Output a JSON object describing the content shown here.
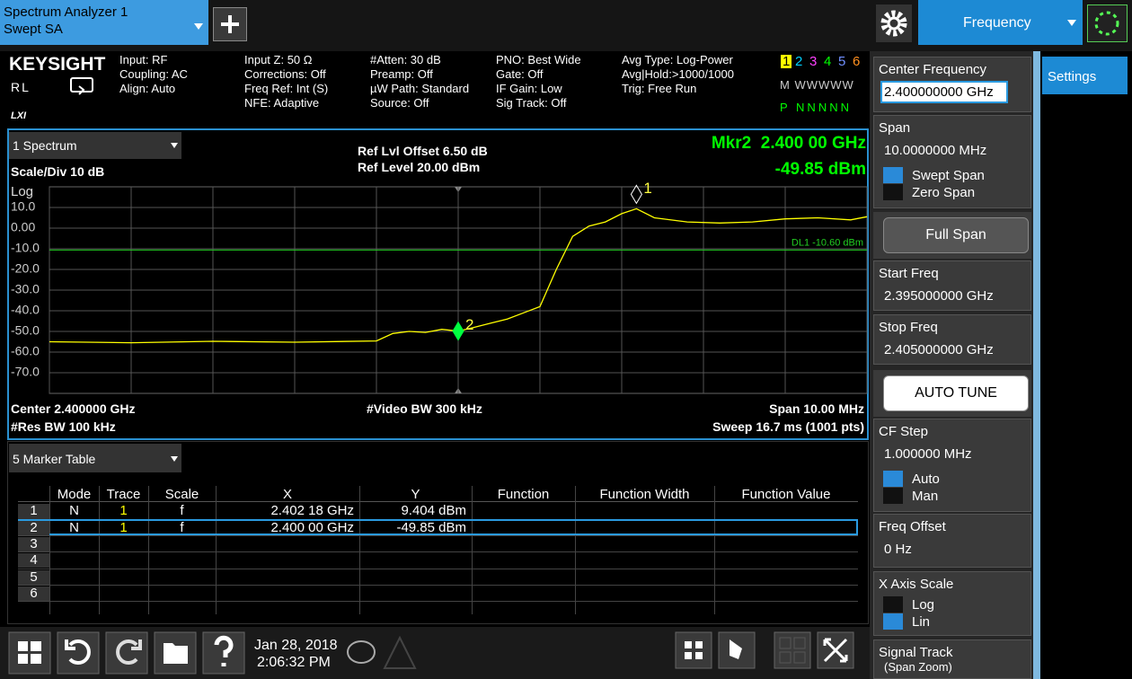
{
  "top_bar": {
    "app_title": "Spectrum Analyzer 1",
    "app_mode": "Swept SA",
    "active_menu": "Frequency"
  },
  "info_bar": {
    "brand": "KEYSIGHT",
    "rl": "RL",
    "lxi": "LXI",
    "columns": [
      [
        "Input: RF",
        "Coupling: AC",
        "Align: Auto"
      ],
      [
        "Input Z: 50 Ω",
        "Corrections: Off",
        "Freq Ref: Int (S)",
        "NFE: Adaptive"
      ],
      [
        "#Atten: 30 dB",
        "Preamp: Off",
        "µW Path: Standard",
        "Source: Off"
      ],
      [
        "PNO: Best Wide",
        "Gate: Off",
        "IF Gain: Low",
        "Sig Track: Off"
      ],
      [
        "Avg Type: Log-Power",
        "Avg|Hold:>1000/1000",
        "Trig: Free Run"
      ]
    ],
    "trace_numbers": [
      "1",
      "2",
      "3",
      "4",
      "5",
      "6"
    ],
    "trace_types": "M WWWWW",
    "trace_detectors": "P NNNNN"
  },
  "window": {
    "title": "1 Spectrum",
    "scale": "Scale/Div 10 dB",
    "log": "Log",
    "ref_offset": "Ref Lvl Offset 6.50 dB",
    "ref_level": "Ref Level 20.00 dBm",
    "marker_freq": "Mkr2  2.400 00 GHz",
    "marker_amp": "-49.85 dBm",
    "center": "Center 2.400000 GHz",
    "res_bw": "#Res BW 100 kHz",
    "video_bw": "#Video BW 300 kHz",
    "span": "Span 10.00 MHz",
    "sweep": "Sweep 16.7 ms (1001 pts)",
    "trace": {
      "type": "line",
      "color": "#ffff00",
      "x": [
        2.395,
        2.396,
        2.397,
        2.398,
        2.399,
        2.3992,
        2.3994,
        2.3996,
        2.3998,
        2.4,
        2.4002,
        2.4004,
        2.4006,
        2.4008,
        2.401,
        2.4012,
        2.4014,
        2.4016,
        2.4018,
        2.402,
        2.40218,
        2.4024,
        2.4028,
        2.4032,
        2.4036,
        2.404,
        2.4044,
        2.4048,
        2.405
      ],
      "values": [
        -55,
        -55.5,
        -54.8,
        -55.2,
        -54.6,
        -51,
        -50,
        -50.5,
        -49,
        -49.85,
        -48,
        -46,
        -44,
        -41,
        -38,
        -20,
        -4,
        1,
        3,
        7,
        9.404,
        5,
        3,
        2.5,
        3,
        4.5,
        5,
        4,
        5.5
      ],
      "xlim": [
        2.395,
        2.405
      ],
      "ylim": [
        -80,
        20
      ],
      "xticks": [
        2.395,
        2.396,
        2.397,
        2.398,
        2.399,
        2.4,
        2.401,
        2.402,
        2.403,
        2.404,
        2.405
      ],
      "yticks": [
        {
          "value": 10,
          "label": "10.0"
        },
        {
          "value": 0,
          "label": "0.00"
        },
        {
          "value": -10,
          "label": "-10.0"
        },
        {
          "value": -20,
          "label": "-20.0"
        },
        {
          "value": -30,
          "label": "-30.0"
        },
        {
          "value": -40,
          "label": "-40.0"
        },
        {
          "value": -50,
          "label": "-50.0"
        },
        {
          "value": -60,
          "label": "-60.0"
        },
        {
          "value": -70,
          "label": "-70.0"
        }
      ],
      "grid": true,
      "display_line": {
        "value": -10.6,
        "label": "DL1 -10.60 dBm",
        "color": "#22cc22"
      },
      "markers": [
        {
          "label": "1",
          "x": 2.40218,
          "y": 9.404
        },
        {
          "label": "2",
          "x": 2.4,
          "y": -49.85
        }
      ]
    }
  },
  "marker_table": {
    "title": "5 Marker Table",
    "selected_row": 1,
    "columns": [
      "Mode",
      "Trace",
      "Scale",
      "X",
      "Y",
      "Function",
      "Function Width",
      "Function Value"
    ],
    "rows": [
      [
        "1",
        "N",
        "1",
        "f",
        "2.402 18 GHz",
        "9.404 dBm"
      ],
      [
        "2",
        "N",
        "1",
        "f",
        "2.400 00 GHz",
        "-49.85 dBm"
      ],
      [
        "3"
      ],
      [
        "4"
      ],
      [
        "5"
      ],
      [
        "6"
      ]
    ]
  },
  "settings_tab": "Settings",
  "panel": [
    {
      "type": "field",
      "label": "Center Frequency",
      "value": "2.400000000 GHz",
      "editing": true
    },
    {
      "type": "field",
      "label": "Span",
      "value": "10.0000000 MHz",
      "options": [
        "Swept Span",
        "Zero Span"
      ],
      "selected": 0
    },
    {
      "type": "button",
      "label": "Full Span"
    },
    {
      "type": "field",
      "label": "Start Freq",
      "value": "2.395000000 GHz"
    },
    {
      "type": "field",
      "label": "Stop Freq",
      "value": "2.405000000 GHz"
    },
    {
      "type": "button",
      "label": "AUTO TUNE",
      "light": true
    },
    {
      "type": "field",
      "label": "CF Step",
      "value": "1.000000 MHz",
      "options": [
        "Auto",
        "Man"
      ],
      "selected": 0
    },
    {
      "type": "field",
      "label": "Freq Offset",
      "value": "0 Hz"
    },
    {
      "type": "field",
      "label": "X Axis Scale",
      "options": [
        "Log",
        "Lin"
      ],
      "selected": 1
    },
    {
      "type": "field",
      "label": "Signal Track",
      "value": "(Span Zoom)"
    }
  ],
  "taskbar": {
    "date": "Jan 28, 2018",
    "time": "2:06:32 PM"
  }
}
